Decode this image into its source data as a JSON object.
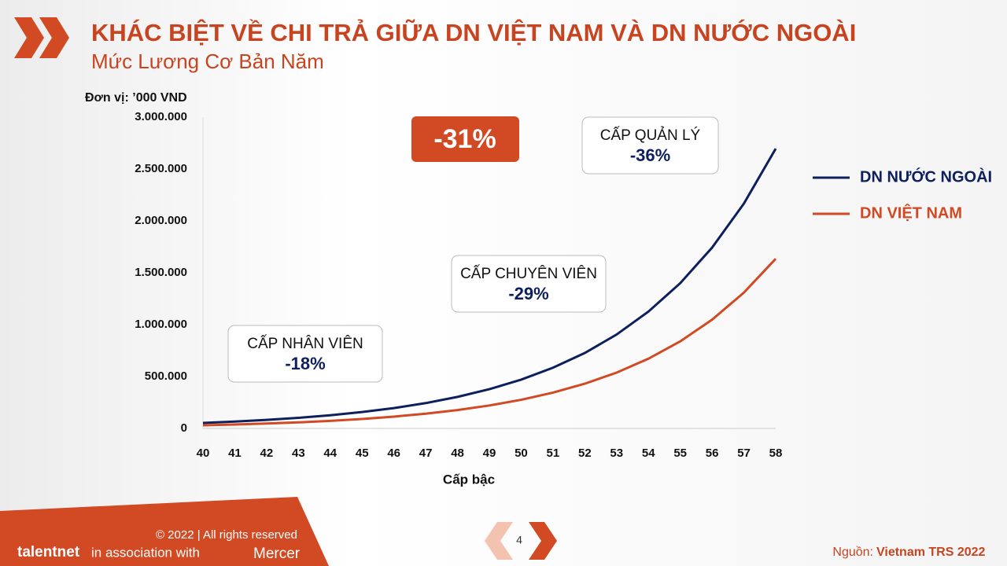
{
  "chart_data": {
    "type": "line",
    "title": "KHÁC BIỆT VỀ CHI TRẢ GIỮA DN VIỆT NAM VÀ DN NƯỚC NGOÀI",
    "subtitle": "Mức Lương Cơ Bản Năm",
    "unit_label": "Đơn vị: ’000 VND",
    "x_label": "Cấp bậc",
    "x": [
      40,
      41,
      42,
      43,
      44,
      45,
      46,
      47,
      48,
      49,
      50,
      51,
      52,
      53,
      54,
      55,
      56,
      57,
      58
    ],
    "xlim": [
      40,
      58
    ],
    "xticks": [
      40,
      41,
      42,
      43,
      44,
      45,
      46,
      47,
      48,
      49,
      50,
      51,
      52,
      53,
      54,
      55,
      56,
      57,
      58
    ],
    "ylim": [
      0,
      3000000
    ],
    "yticks": [
      0,
      {
        "value": 500000,
        "label": "500.000"
      },
      {
        "value": 1000000,
        "label": "1.000.000"
      },
      {
        "value": 1500000,
        "label": "1.500.000"
      },
      {
        "value": 2000000,
        "label": "2.000.000"
      },
      {
        "value": 2500000,
        "label": "2.500.000"
      },
      {
        "value": 3000000,
        "label": "3.000.000"
      }
    ],
    "series": [
      {
        "name": "DN NƯỚC NGOÀI",
        "color": "#0d1f5c",
        "values": [
          53000,
          66000,
          82000,
          102000,
          127000,
          158000,
          196000,
          244000,
          304000,
          378000,
          470000,
          585000,
          727000,
          905000,
          1126000,
          1400000,
          1742000,
          2167000,
          2696000
        ]
      },
      {
        "name": "DN VIỆT NAM",
        "color": "#d14a24",
        "values": [
          30000,
          37500,
          47000,
          58500,
          73000,
          91000,
          114000,
          142000,
          177000,
          221000,
          276000,
          345000,
          431000,
          538000,
          672000,
          839000,
          1048000,
          1309000,
          1635000
        ]
      }
    ],
    "highlight": "-31%",
    "annotations": [
      {
        "title": "CẤP NHÂN VIÊN",
        "text": "-18%"
      },
      {
        "title": "CẤP CHUYÊN VIÊN",
        "text": "-29%"
      },
      {
        "title": "CẤP QUẢN LÝ",
        "text": "-36%"
      }
    ]
  },
  "footer": {
    "copyright": "© 2022 | All rights reserved",
    "brand": "talentnet",
    "association": "in association with",
    "partner": "Mercer",
    "page": "4",
    "source_label": "Nguồn:",
    "source": "Vietnam TRS 2022"
  }
}
